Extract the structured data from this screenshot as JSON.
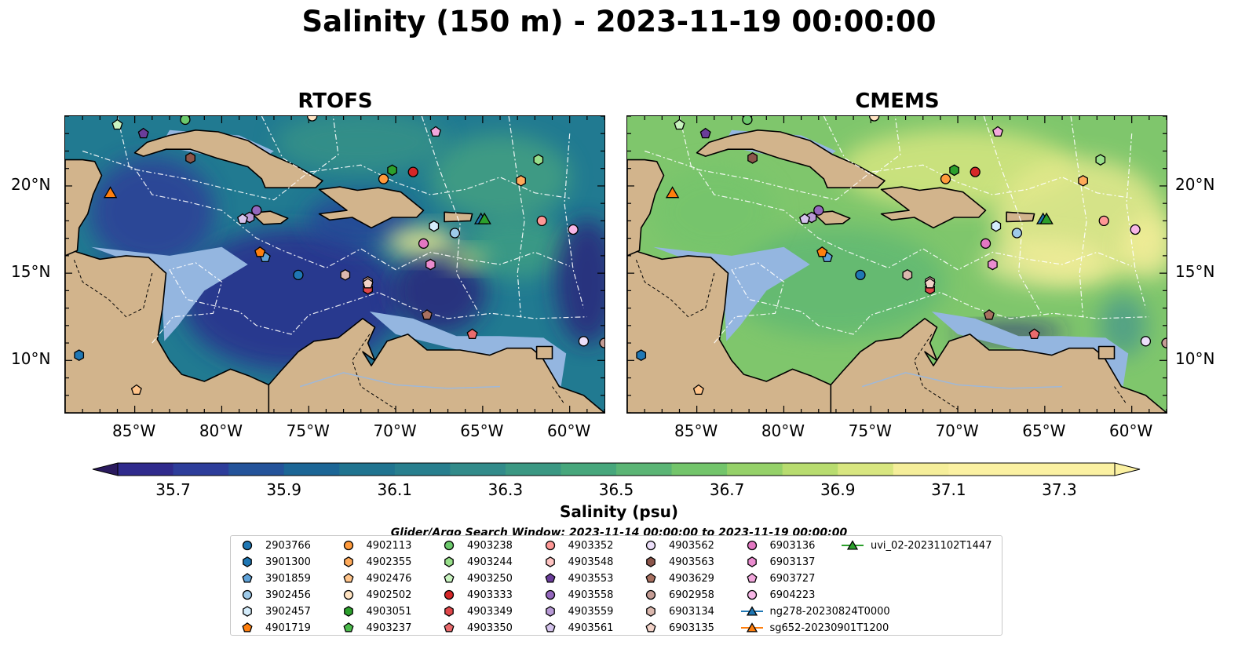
{
  "title": "Salinity (150 m) - 2023-11-19 00:00:00",
  "panels": [
    {
      "title": "RTOFS",
      "model": "rtofs"
    },
    {
      "title": "CMEMS",
      "model": "cmems"
    }
  ],
  "map_extent": {
    "lon": [
      -89,
      -58
    ],
    "lat": [
      7,
      24
    ]
  },
  "lat_ticks": [
    {
      "value": 20,
      "label": "20°N"
    },
    {
      "value": 15,
      "label": "15°N"
    },
    {
      "value": 10,
      "label": "10°N"
    }
  ],
  "lon_ticks": [
    {
      "value": -85,
      "label": "85°W"
    },
    {
      "value": -80,
      "label": "80°W"
    },
    {
      "value": -75,
      "label": "75°W"
    },
    {
      "value": -70,
      "label": "70°W"
    },
    {
      "value": -65,
      "label": "65°W"
    },
    {
      "value": -60,
      "label": "60°W"
    }
  ],
  "colorbar": {
    "min": 35.6,
    "max": 37.4,
    "step": 0.1,
    "label": "Salinity (psu)",
    "tick_labels": [
      "35.7",
      "35.9",
      "36.1",
      "36.3",
      "36.5",
      "36.7",
      "36.9",
      "37.1",
      "37.3"
    ],
    "tick_values": [
      35.7,
      35.9,
      36.1,
      36.3,
      36.5,
      36.7,
      36.9,
      37.1,
      37.3
    ],
    "colors": [
      "#2a1a5e",
      "#2f2a8c",
      "#2d3d9a",
      "#24539a",
      "#1c6696",
      "#207490",
      "#287f8e",
      "#328b8a",
      "#3b9883",
      "#47a77c",
      "#5bb575",
      "#73c56b",
      "#95d169",
      "#b8dc6f",
      "#d8e680",
      "#f5ee9a",
      "#fbf1a2"
    ],
    "extend": "both"
  },
  "search_window": "Glider/Argo Search Window: 2023-11-14 00:00:00 to 2023-11-19 00:00:00",
  "platforms": [
    {
      "id": "2903766",
      "marker": "circle",
      "color": "#1f77b4",
      "lon": -75.6,
      "lat": 14.9
    },
    {
      "id": "3901300",
      "marker": "hexagon",
      "color": "#1f77b4",
      "lon": -88.2,
      "lat": 10.3
    },
    {
      "id": "3901859",
      "marker": "pentagon",
      "color": "#5fa2d8",
      "lon": -77.5,
      "lat": 15.9
    },
    {
      "id": "3902456",
      "marker": "circle",
      "color": "#9ecae9",
      "lon": -66.6,
      "lat": 17.3
    },
    {
      "id": "3902457",
      "marker": "hexagon",
      "color": "#d4ecfb",
      "lon": -67.8,
      "lat": 17.7
    },
    {
      "id": "4901719",
      "marker": "pentagon",
      "color": "#ff7f0e",
      "lon": -77.8,
      "lat": 16.2
    },
    {
      "id": "4902113",
      "marker": "circle",
      "color": "#ff9a3c",
      "lon": -70.7,
      "lat": 20.4
    },
    {
      "id": "4902355",
      "marker": "hexagon",
      "color": "#ffaa5a",
      "lon": -62.8,
      "lat": 20.3
    },
    {
      "id": "4902476",
      "marker": "pentagon",
      "color": "#ffc48a",
      "lon": -84.9,
      "lat": 8.3
    },
    {
      "id": "4902502",
      "marker": "circle",
      "color": "#ffe3c2",
      "lon": -74.8,
      "lat": 24.0
    },
    {
      "id": "4903051",
      "marker": "hexagon",
      "color": "#2ca02c",
      "lon": -70.2,
      "lat": 20.9
    },
    {
      "id": "4903237",
      "marker": "pentagon",
      "color": "#4cbb4c",
      "lon": -82.1,
      "lat": 24.0
    },
    {
      "id": "4903238",
      "marker": "circle",
      "color": "#6cc96c",
      "lon": -82.1,
      "lat": 23.8
    },
    {
      "id": "4903244",
      "marker": "hexagon",
      "color": "#98df8a",
      "lon": -61.8,
      "lat": 21.5
    },
    {
      "id": "4903250",
      "marker": "pentagon",
      "color": "#c9f3c0",
      "lon": -86.0,
      "lat": 23.5
    },
    {
      "id": "4903333",
      "marker": "circle",
      "color": "#d62728",
      "lon": -69.0,
      "lat": 20.8
    },
    {
      "id": "4903349",
      "marker": "hexagon",
      "color": "#e0474a",
      "lon": -71.6,
      "lat": 14.1
    },
    {
      "id": "4903350",
      "marker": "pentagon",
      "color": "#ea6b6d",
      "lon": -65.6,
      "lat": 11.5
    },
    {
      "id": "4903352",
      "marker": "circle",
      "color": "#ff9896",
      "lon": -61.6,
      "lat": 18.0
    },
    {
      "id": "4903548",
      "marker": "hexagon",
      "color": "#ffc4c2",
      "lon": -71.6,
      "lat": 14.5
    },
    {
      "id": "4903553",
      "marker": "pentagon",
      "color": "#6a3d9a",
      "lon": -84.5,
      "lat": 23.0
    },
    {
      "id": "4903558",
      "marker": "circle",
      "color": "#9467bd",
      "lon": -78.0,
      "lat": 18.6
    },
    {
      "id": "4903559",
      "marker": "hexagon",
      "color": "#b89ad6",
      "lon": -78.4,
      "lat": 18.2
    },
    {
      "id": "4903561",
      "marker": "pentagon",
      "color": "#d4c3ec",
      "lon": -78.8,
      "lat": 18.1
    },
    {
      "id": "4903562",
      "marker": "circle",
      "color": "#ecdffa",
      "lon": -59.2,
      "lat": 11.1
    },
    {
      "id": "4903563",
      "marker": "hexagon",
      "color": "#8c564b",
      "lon": -81.8,
      "lat": 21.6
    },
    {
      "id": "4903629",
      "marker": "pentagon",
      "color": "#a87060",
      "lon": -68.2,
      "lat": 12.6
    },
    {
      "id": "6902958",
      "marker": "circle",
      "color": "#c49c94",
      "lon": -58.0,
      "lat": 11.0
    },
    {
      "id": "6903134",
      "marker": "hexagon",
      "color": "#dbb8ae",
      "lon": -72.9,
      "lat": 14.9
    },
    {
      "id": "6903135",
      "marker": "pentagon",
      "color": "#f2d2c8",
      "lon": -71.6,
      "lat": 14.4
    },
    {
      "id": "6903136",
      "marker": "circle",
      "color": "#e377c2",
      "lon": -68.4,
      "lat": 16.7
    },
    {
      "id": "6903137",
      "marker": "hexagon",
      "color": "#ea8ccf",
      "lon": -68.0,
      "lat": 15.5
    },
    {
      "id": "6903727",
      "marker": "pentagon",
      "color": "#f2a7dc",
      "lon": -67.7,
      "lat": 23.1
    },
    {
      "id": "6904223",
      "marker": "circle",
      "color": "#f7b6e6",
      "lon": -59.8,
      "lat": 17.5
    }
  ],
  "gliders": [
    {
      "id": "ng278-20230824T0000",
      "color": "#1f77b4",
      "lon": -65.1,
      "lat": 18.1
    },
    {
      "id": "sg652-20230901T1200",
      "color": "#ff7f0e",
      "lon": -86.4,
      "lat": 19.6
    },
    {
      "id": "uvi_02-20231102T1447",
      "color": "#2ca02c",
      "lon": -64.9,
      "lat": 18.1
    }
  ]
}
